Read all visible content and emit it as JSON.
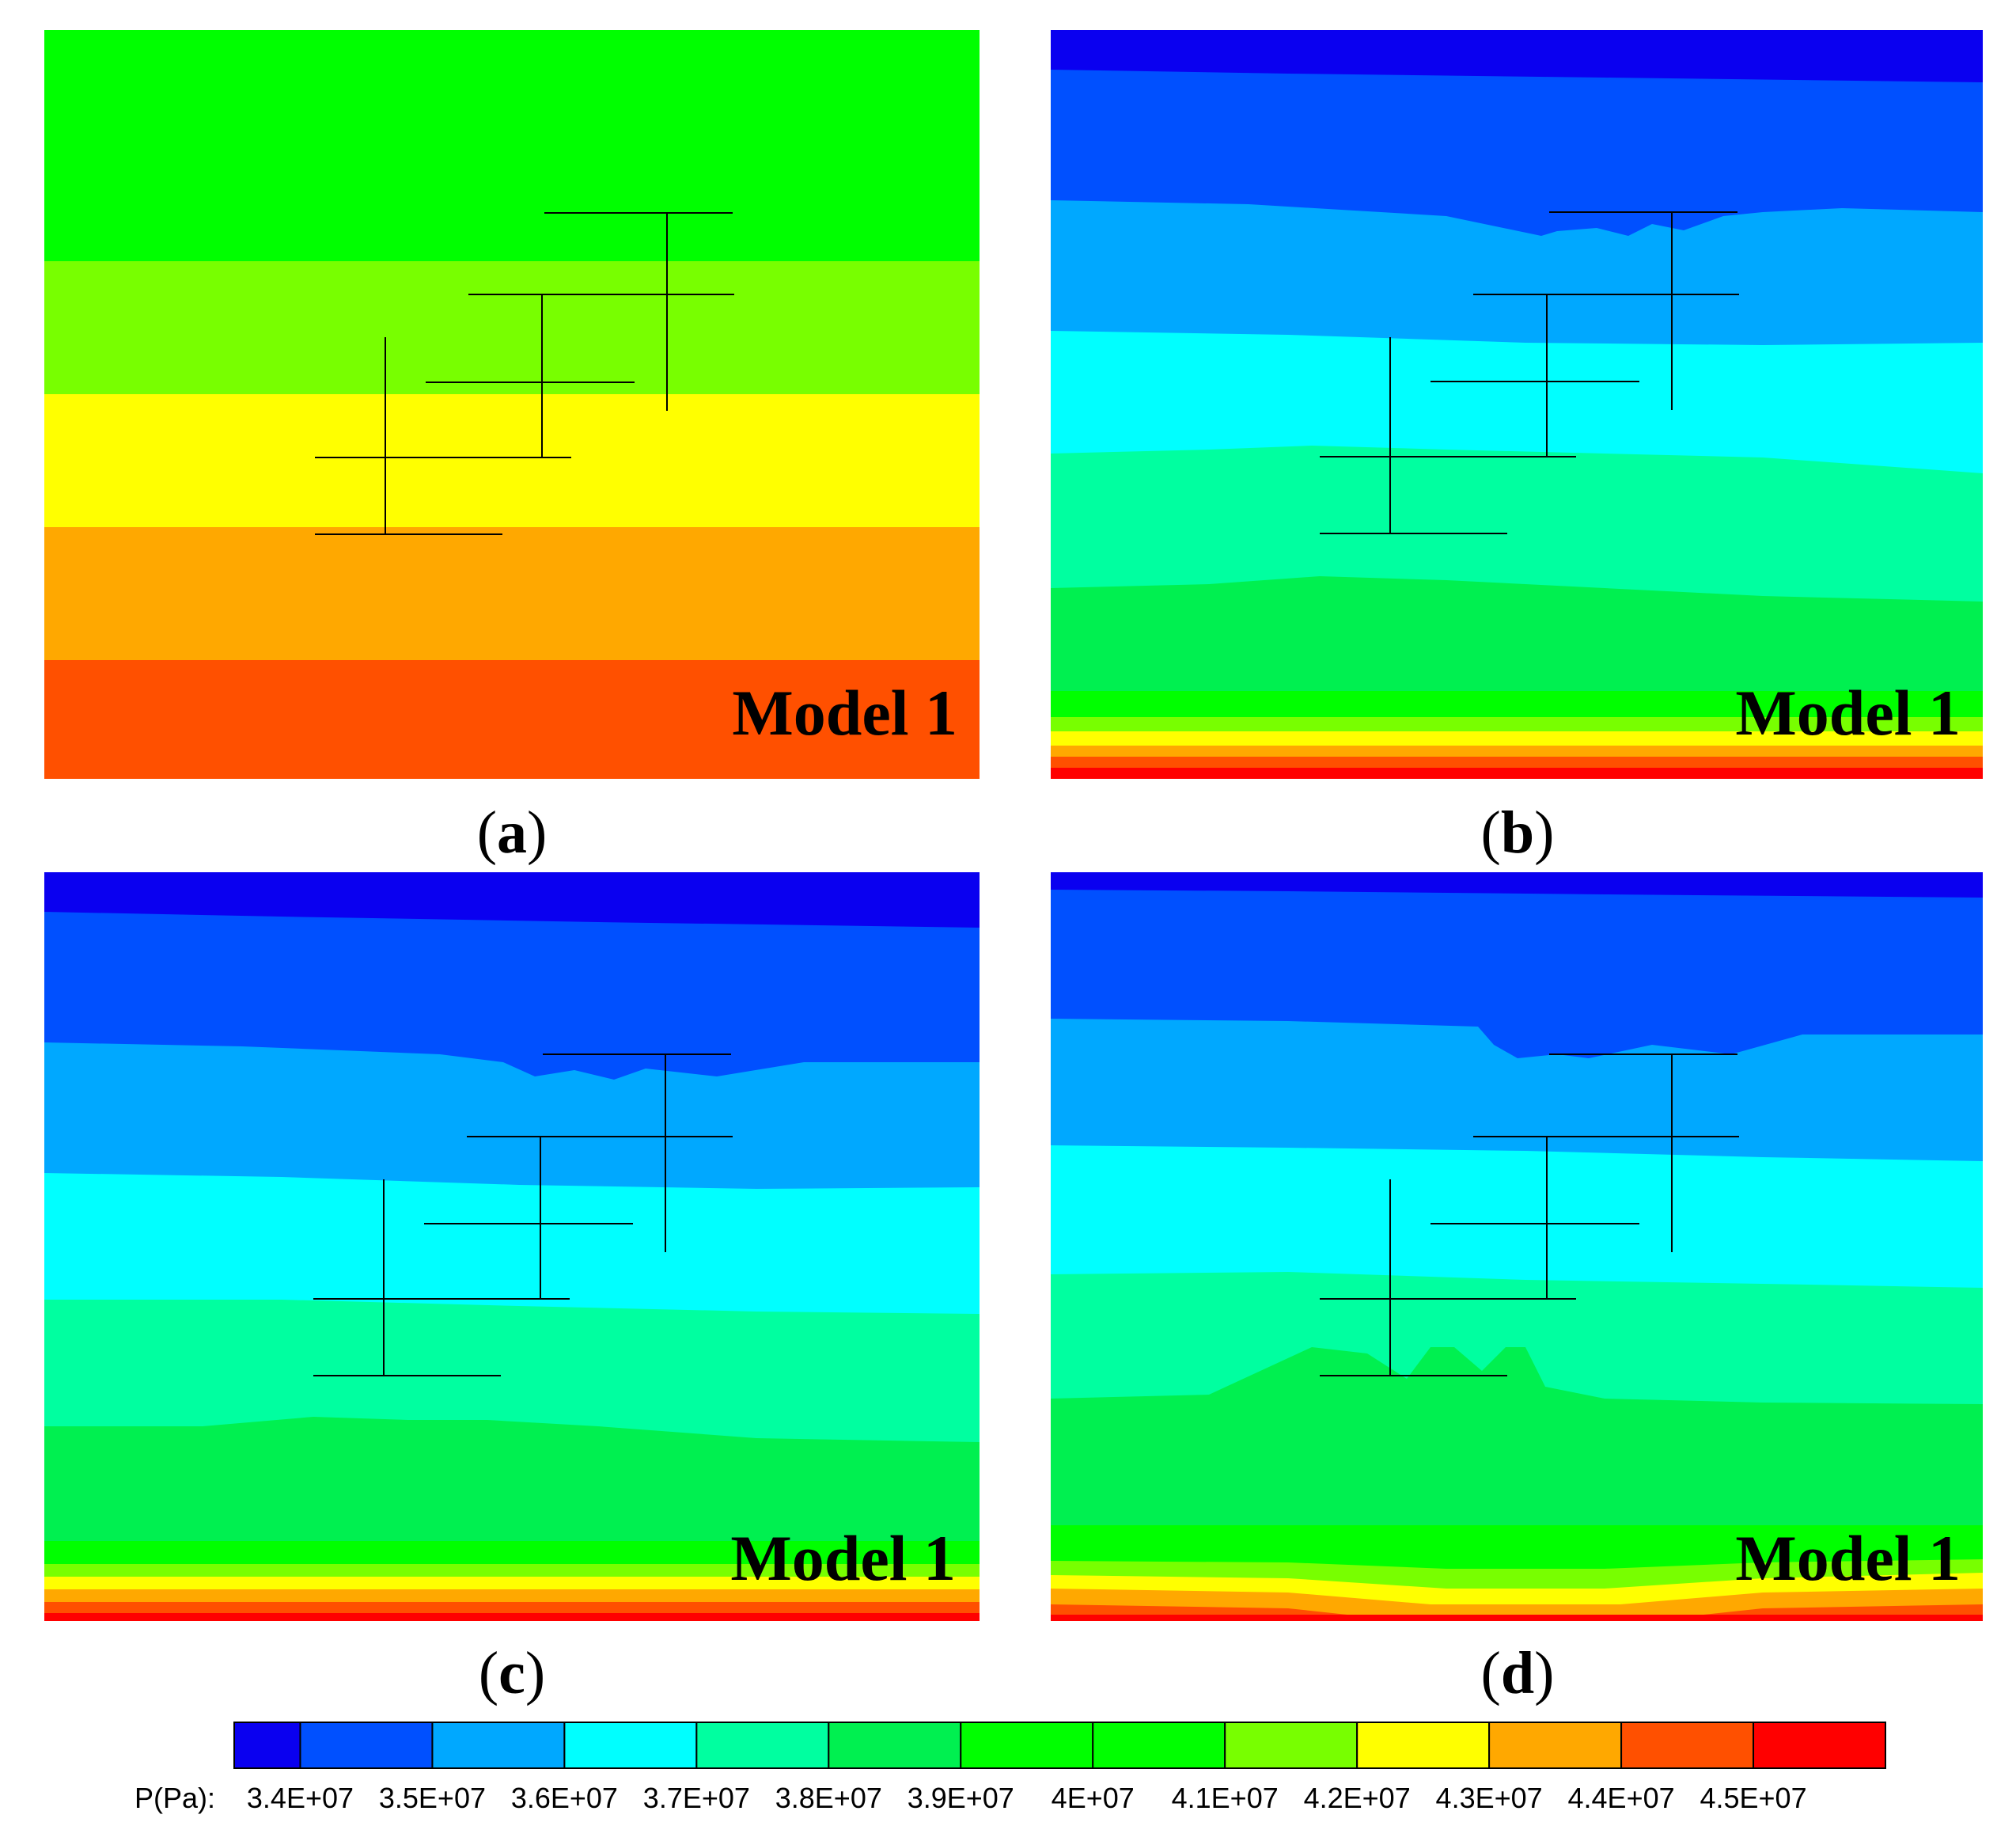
{
  "figure": {
    "model_label": "Model 1",
    "panels": [
      {
        "id": "a",
        "caption": "a"
      },
      {
        "id": "b",
        "caption": "b"
      },
      {
        "id": "c",
        "caption": "c"
      },
      {
        "id": "d",
        "caption": "d"
      }
    ]
  },
  "legend": {
    "variable_label": "P(Pa):",
    "colors": [
      "#0a00f0",
      "#0050ff",
      "#00a8ff",
      "#00ffff",
      "#00ffa0",
      "#00f050",
      "#00ff00",
      "#00ff00",
      "#78ff00",
      "#ffff00",
      "#ffa800",
      "#ff5000",
      "#ff0000"
    ],
    "tick_labels": [
      "3.4E+07",
      "3.5E+07",
      "3.6E+07",
      "3.7E+07",
      "3.8E+07",
      "3.9E+07",
      "4E+07",
      "4.1E+07",
      "4.2E+07",
      "4.3E+07",
      "4.4E+07",
      "4.5E+07"
    ]
  }
}
